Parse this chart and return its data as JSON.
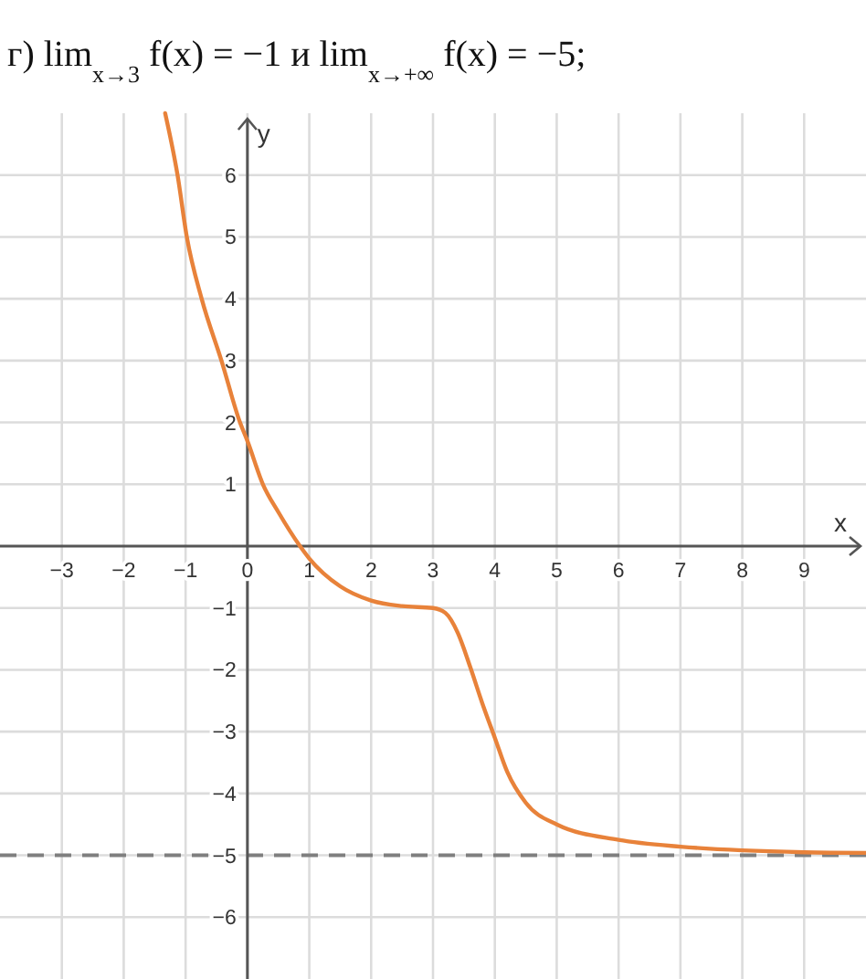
{
  "chart_data": {
    "type": "line",
    "title": "г) lim$_{x→3}$ f(x) = −1 и lim$_{x→+∞}$ f(x) = −5;",
    "xlabel": "x",
    "ylabel": "y",
    "x": [
      -1.33,
      -1.13,
      -0.98,
      -0.74,
      -0.42,
      -0.12,
      0,
      0.25,
      0.5,
      0.85,
      1,
      1.5,
      2,
      2.5,
      3,
      3.2,
      3.4,
      3.6,
      3.8,
      4,
      4.2,
      4.5,
      5,
      6,
      7,
      8,
      9,
      10
    ],
    "series": [
      {
        "color": "#e8823a",
        "values": [
          7,
          6,
          5,
          4,
          3,
          2,
          1.7,
          1,
          0.55,
          0,
          -0.2,
          -0.65,
          -0.88,
          -0.97,
          -1,
          -1.08,
          -1.4,
          -1.95,
          -2.55,
          -3.1,
          -3.65,
          -4.15,
          -4.5,
          -4.75,
          -4.86,
          -4.92,
          -4.95,
          -4.96
        ]
      }
    ],
    "xlim": [
      -4,
      10
    ],
    "ylim": [
      -7,
      7
    ],
    "xticks": [
      -3,
      -2,
      -1,
      0,
      1,
      2,
      3,
      4,
      5,
      6,
      7,
      8,
      9
    ],
    "yticks": [
      -6,
      -5,
      -4,
      -3,
      -2,
      -1,
      1,
      2,
      3,
      4,
      5,
      6
    ],
    "grid": true,
    "line_style": "solid",
    "ref_lines": [
      {
        "axis": "y",
        "value": -5,
        "color": "#7f7f7f",
        "line_style": "dashed"
      }
    ]
  }
}
